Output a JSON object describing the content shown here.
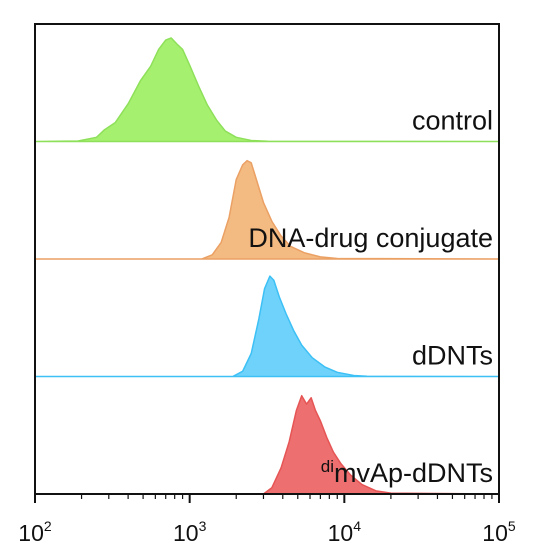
{
  "chart_data": {
    "type": "area",
    "subtype": "stacked-histograms",
    "xscale": "log",
    "xlim": [
      100,
      100000
    ],
    "x_ticks": [
      {
        "value": 100,
        "base": "10",
        "exp": "2"
      },
      {
        "value": 1000,
        "base": "10",
        "exp": "3"
      },
      {
        "value": 10000,
        "base": "10",
        "exp": "4"
      },
      {
        "value": 100000,
        "base": "10",
        "exp": "5"
      }
    ],
    "grid": false,
    "series": [
      {
        "key": "control",
        "label_sup": "",
        "label": "control",
        "fill": "#a6f06f",
        "stroke": "#8ee05a",
        "points": [
          [
            100,
            0
          ],
          [
            190,
            0.005
          ],
          [
            250,
            0.04
          ],
          [
            280,
            0.11
          ],
          [
            330,
            0.18
          ],
          [
            400,
            0.36
          ],
          [
            480,
            0.58
          ],
          [
            560,
            0.72
          ],
          [
            630,
            0.88
          ],
          [
            700,
            0.97
          ],
          [
            760,
            0.99
          ],
          [
            830,
            0.93
          ],
          [
            900,
            0.88
          ],
          [
            1000,
            0.73
          ],
          [
            1150,
            0.52
          ],
          [
            1300,
            0.35
          ],
          [
            1500,
            0.2
          ],
          [
            1700,
            0.1
          ],
          [
            2000,
            0.04
          ],
          [
            2500,
            0.01
          ],
          [
            3200,
            0.002
          ],
          [
            100000,
            0
          ]
        ]
      },
      {
        "key": "dna-drug-conjugate",
        "label_sup": "",
        "label": "DNA-drug conjugate",
        "fill": "#f3bb82",
        "stroke": "#eba064",
        "points": [
          [
            100,
            0
          ],
          [
            1200,
            0
          ],
          [
            1400,
            0.04
          ],
          [
            1600,
            0.16
          ],
          [
            1800,
            0.4
          ],
          [
            2000,
            0.76
          ],
          [
            2200,
            0.9
          ],
          [
            2350,
            0.94
          ],
          [
            2500,
            0.92
          ],
          [
            2700,
            0.76
          ],
          [
            3000,
            0.54
          ],
          [
            3400,
            0.36
          ],
          [
            3900,
            0.22
          ],
          [
            4500,
            0.12
          ],
          [
            5500,
            0.06
          ],
          [
            7000,
            0.02
          ],
          [
            9000,
            0.005
          ],
          [
            100000,
            0
          ]
        ]
      },
      {
        "key": "ddnts",
        "label_sup": "",
        "label": "dDNTs",
        "fill": "#6fd2fa",
        "stroke": "#3cc0f5",
        "points": [
          [
            100,
            0
          ],
          [
            1900,
            0
          ],
          [
            2200,
            0.05
          ],
          [
            2500,
            0.22
          ],
          [
            2800,
            0.55
          ],
          [
            3050,
            0.84
          ],
          [
            3300,
            0.96
          ],
          [
            3500,
            0.92
          ],
          [
            3800,
            0.76
          ],
          [
            4200,
            0.6
          ],
          [
            4700,
            0.44
          ],
          [
            5300,
            0.3
          ],
          [
            6200,
            0.18
          ],
          [
            7500,
            0.09
          ],
          [
            9000,
            0.04
          ],
          [
            11500,
            0.01
          ],
          [
            14000,
            0.002
          ],
          [
            100000,
            0
          ]
        ]
      },
      {
        "key": "dimvap-ddnts",
        "label_sup": "di",
        "label": "mvAp-dDNTs",
        "fill": "#ee6f6f",
        "stroke": "#e65555",
        "points": [
          [
            100,
            0
          ],
          [
            3000,
            0
          ],
          [
            3400,
            0.06
          ],
          [
            3900,
            0.25
          ],
          [
            4400,
            0.5
          ],
          [
            4900,
            0.8
          ],
          [
            5300,
            0.94
          ],
          [
            5700,
            0.86
          ],
          [
            6100,
            0.92
          ],
          [
            6500,
            0.8
          ],
          [
            7000,
            0.7
          ],
          [
            7700,
            0.54
          ],
          [
            8500,
            0.4
          ],
          [
            9500,
            0.29
          ],
          [
            11000,
            0.18
          ],
          [
            13000,
            0.09
          ],
          [
            16000,
            0.03
          ],
          [
            20000,
            0.008
          ],
          [
            100000,
            0
          ]
        ]
      }
    ]
  }
}
